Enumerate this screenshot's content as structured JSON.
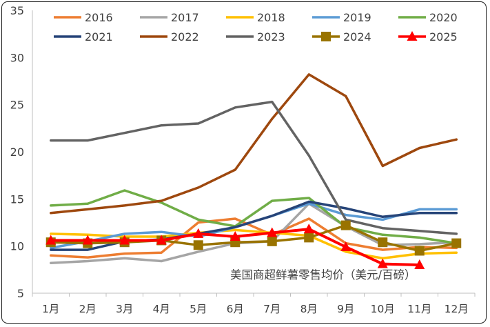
{
  "chart_data": {
    "type": "line",
    "title": "",
    "xlabel": "",
    "ylabel": "",
    "annotation": "美国商超鲜薯零售均价（美元/百磅）",
    "categories": [
      "1月",
      "2月",
      "3月",
      "4月",
      "5月",
      "6月",
      "7月",
      "8月",
      "9月",
      "10月",
      "11月",
      "12月"
    ],
    "ylim": [
      5,
      35
    ],
    "yticks": [
      5,
      10,
      15,
      20,
      25,
      30,
      35
    ],
    "grid": false,
    "legend_position": "top",
    "series": [
      {
        "name": "2016",
        "color": "#ED7D31",
        "marker": "none",
        "values": [
          9.0,
          8.8,
          9.2,
          9.3,
          12.5,
          12.9,
          11.2,
          12.9,
          10.3,
          9.6,
          9.9,
          9.8
        ]
      },
      {
        "name": "2017",
        "color": "#A5A5A5",
        "marker": "none",
        "values": [
          8.2,
          8.4,
          8.7,
          8.4,
          9.4,
          10.3,
          10.5,
          14.5,
          12.1,
          10.1,
          10.2,
          10.4
        ]
      },
      {
        "name": "2018",
        "color": "#FFC000",
        "marker": "none",
        "values": [
          11.3,
          11.2,
          11.0,
          11.0,
          11.4,
          11.7,
          11.4,
          11.1,
          9.4,
          8.7,
          9.2,
          9.3
        ]
      },
      {
        "name": "2019",
        "color": "#5B9BD5",
        "marker": "none",
        "values": [
          9.8,
          10.5,
          11.3,
          11.5,
          11.0,
          12.0,
          13.2,
          14.5,
          13.3,
          12.8,
          13.9,
          13.9
        ]
      },
      {
        "name": "2020",
        "color": "#70AD47",
        "marker": "none",
        "values": [
          14.3,
          14.5,
          15.9,
          14.6,
          12.8,
          12.1,
          14.8,
          15.1,
          12.0,
          11.2,
          10.9,
          10.3
        ]
      },
      {
        "name": "2021",
        "color": "#264478",
        "marker": "none",
        "values": [
          9.6,
          9.6,
          10.5,
          10.7,
          11.3,
          12.0,
          13.2,
          14.7,
          14.0,
          13.1,
          13.5,
          13.5
        ]
      },
      {
        "name": "2022",
        "color": "#9E480E",
        "marker": "none",
        "values": [
          13.5,
          13.9,
          14.3,
          14.8,
          16.2,
          18.1,
          23.5,
          28.2,
          25.9,
          18.5,
          20.4,
          21.3
        ]
      },
      {
        "name": "2023",
        "color": "#636363",
        "marker": "none",
        "values": [
          21.2,
          21.2,
          22.0,
          22.8,
          23.0,
          24.7,
          25.3,
          19.6,
          12.8,
          11.9,
          11.6,
          11.3
        ]
      },
      {
        "name": "2024",
        "color": "#997300",
        "marker": "square",
        "values": [
          10.4,
          10.3,
          10.4,
          10.6,
          10.1,
          10.4,
          10.5,
          10.9,
          12.2,
          10.4,
          9.5,
          10.3
        ]
      },
      {
        "name": "2025",
        "color": "#FF0000",
        "marker": "triangle",
        "values": [
          10.6,
          10.6,
          10.6,
          10.6,
          11.3,
          11.0,
          11.4,
          11.8,
          9.9,
          8.1,
          8.0,
          null
        ]
      }
    ]
  }
}
